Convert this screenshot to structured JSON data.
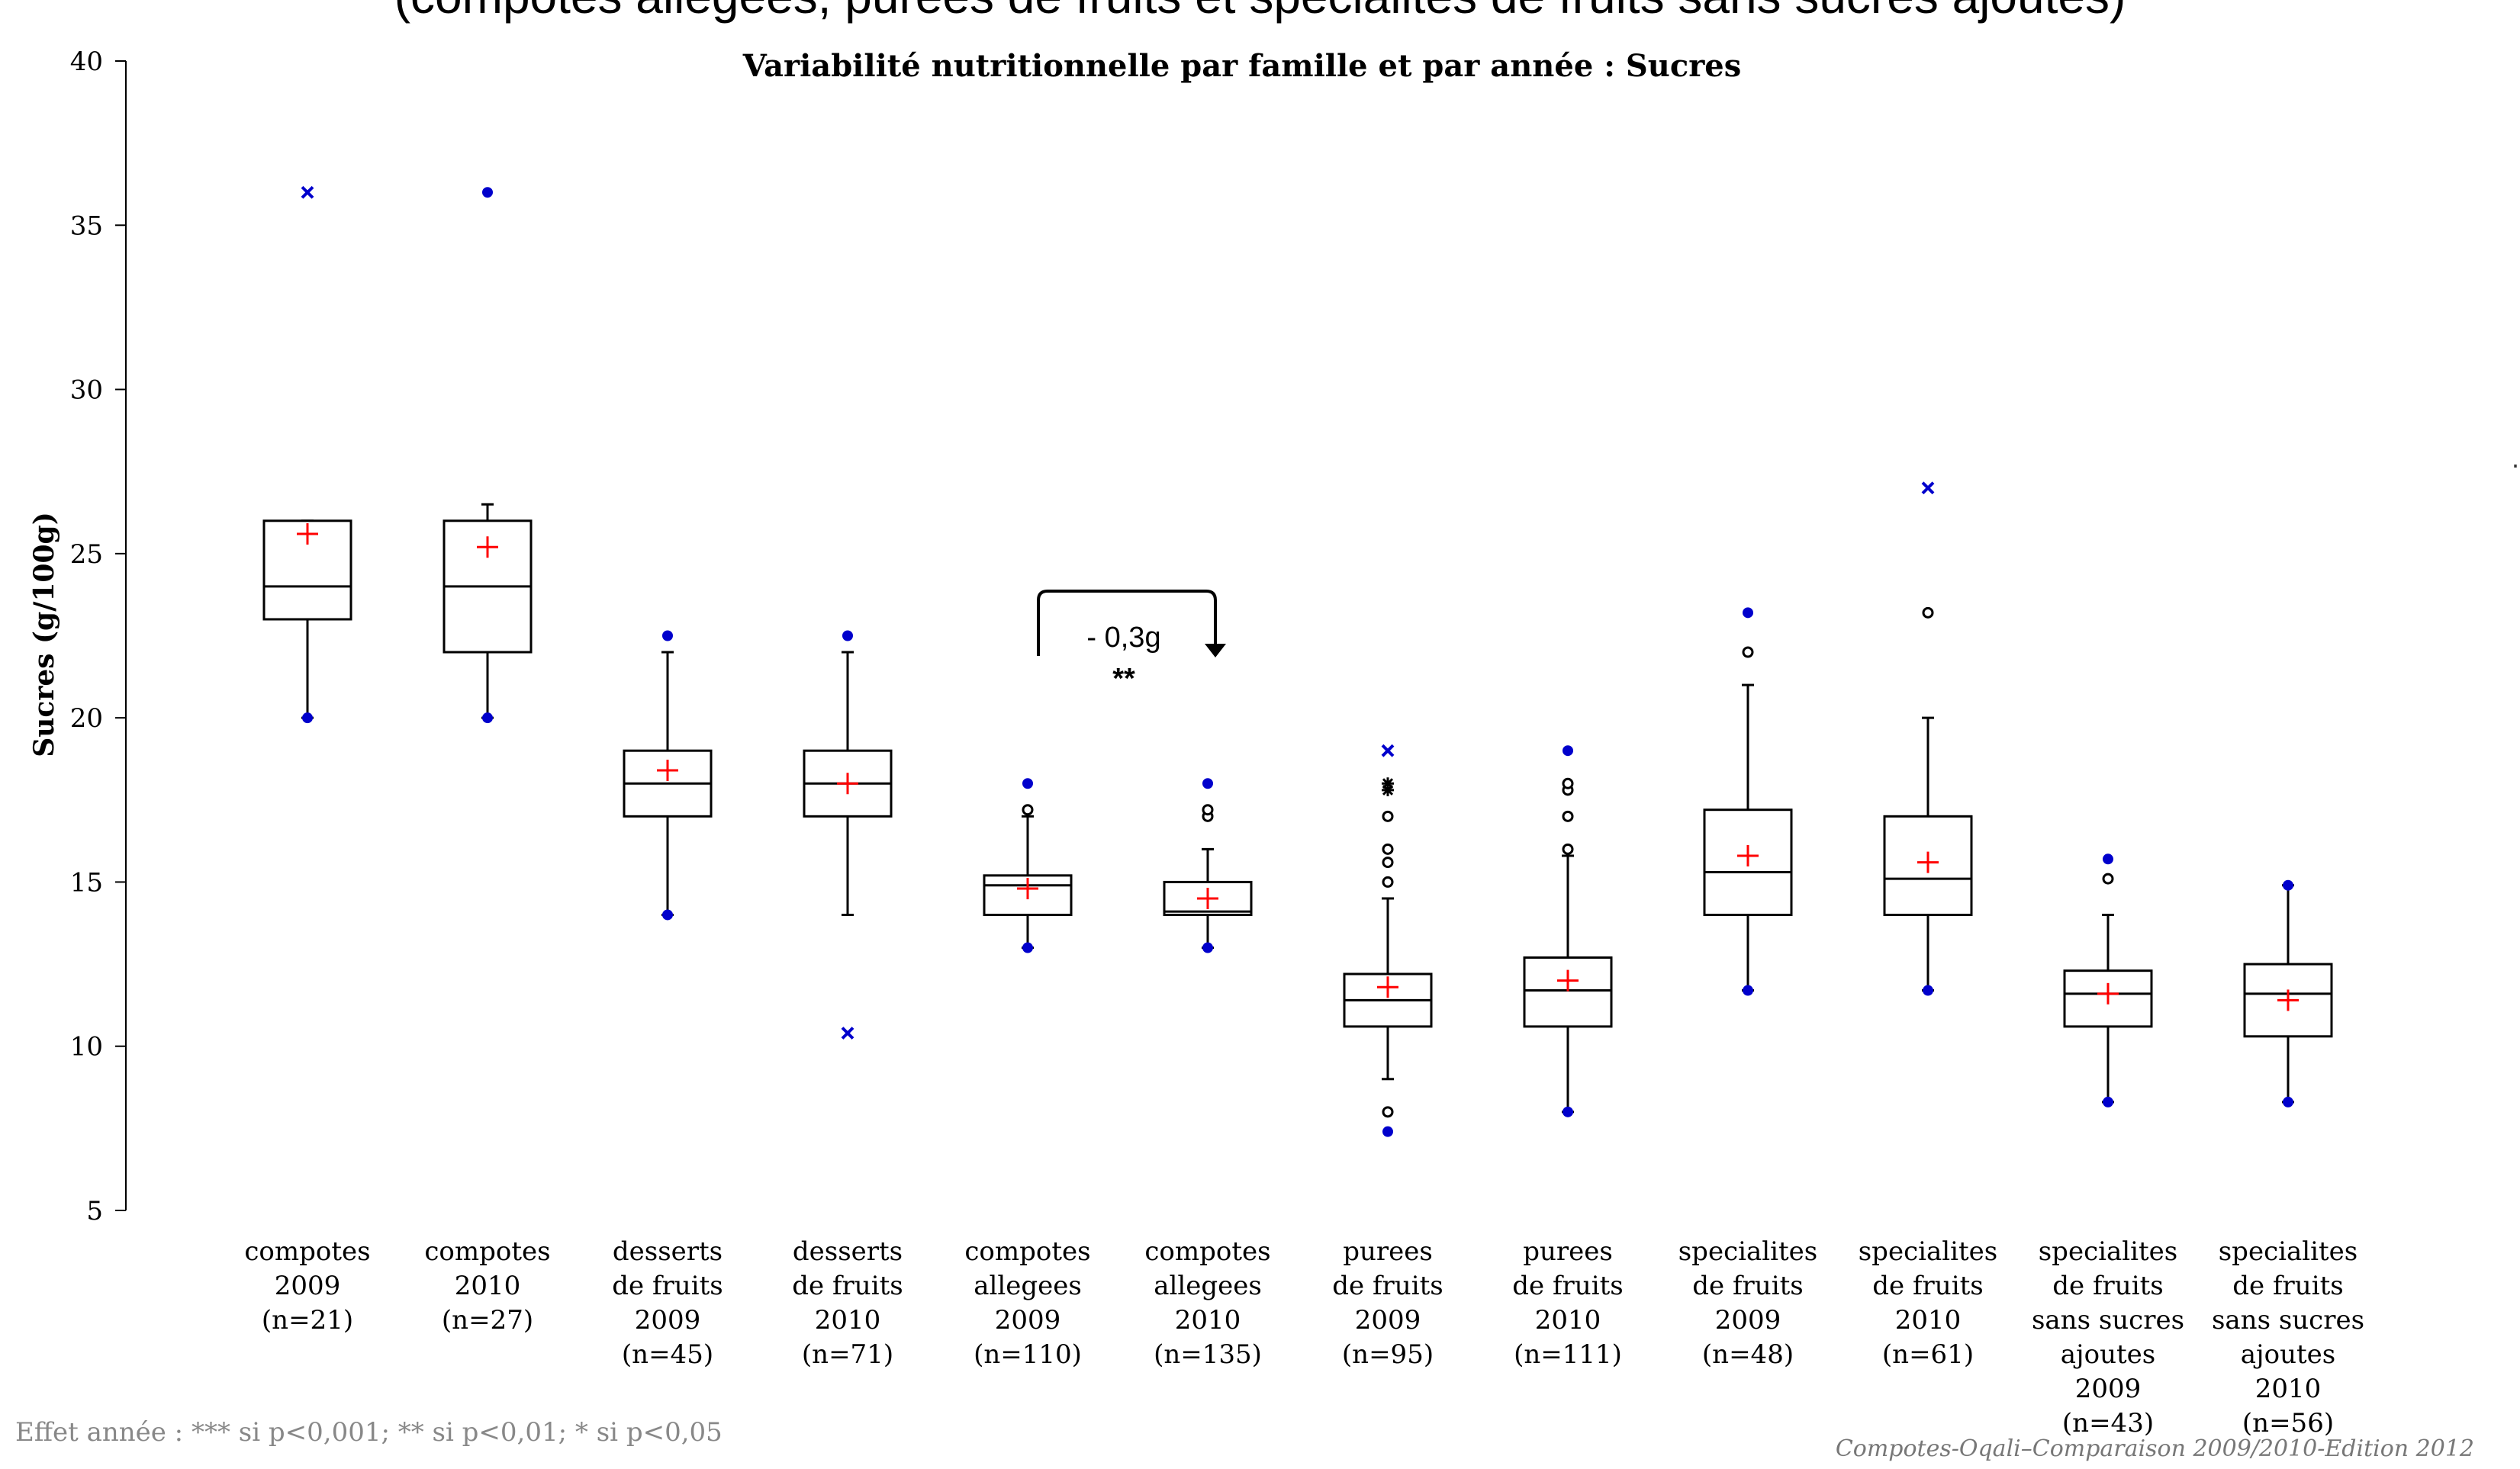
{
  "page_header": "(compotes allegees, purees de fruits et specialites de fruits sans sucres ajoutes)",
  "footnote": "Effet année : *** si p<0,001; ** si p<0,01; * si p<0,05",
  "source_note": "Compotes-Oqali–Comparaison 2009/2010-Edition  2012",
  "edge_mark": "·",
  "chart_data": {
    "type": "box",
    "title": "Variabilité nutritionnelle par famille et par année : Sucres",
    "ylabel": "Sucres (g/100g)",
    "ylim": [
      5,
      40
    ],
    "yticks": [
      5,
      10,
      15,
      20,
      25,
      30,
      35,
      40
    ],
    "grid": false,
    "colors": {
      "box": "#000000",
      "mean": "#ff0000",
      "extreme": "#0000cc",
      "outlier": "#000000"
    },
    "categories": [
      {
        "label_lines": [
          "compotes",
          "2009",
          "(n=21)"
        ],
        "whisker_low": 20,
        "q1": 23,
        "median": 24,
        "q3": 26,
        "whisker_high": 26,
        "mean": 25.6,
        "outliers": [],
        "extremes": [
          {
            "v": 36,
            "shape": "x"
          },
          {
            "v": 20,
            "shape": "dot"
          }
        ]
      },
      {
        "label_lines": [
          "compotes",
          "2010",
          "(n=27)"
        ],
        "whisker_low": 20,
        "q1": 22,
        "median": 24,
        "q3": 26,
        "whisker_high": 26.5,
        "mean": 25.2,
        "outliers": [],
        "extremes": [
          {
            "v": 36,
            "shape": "dot"
          },
          {
            "v": 20,
            "shape": "dot"
          }
        ]
      },
      {
        "label_lines": [
          "desserts",
          "de fruits",
          "2009",
          "(n=45)"
        ],
        "whisker_low": 14,
        "q1": 17,
        "median": 18,
        "q3": 19,
        "whisker_high": 22,
        "mean": 18.4,
        "outliers": [],
        "extremes": [
          {
            "v": 22.5,
            "shape": "dot"
          },
          {
            "v": 14,
            "shape": "dot"
          }
        ]
      },
      {
        "label_lines": [
          "desserts",
          "de fruits",
          "2010",
          "(n=71)"
        ],
        "whisker_low": 14,
        "q1": 17,
        "median": 18,
        "q3": 19,
        "whisker_high": 22,
        "mean": 18,
        "outliers": [],
        "extremes": [
          {
            "v": 22.5,
            "shape": "dot"
          },
          {
            "v": 10.4,
            "shape": "x"
          }
        ]
      },
      {
        "label_lines": [
          "compotes",
          "allegees",
          "2009",
          "(n=110)"
        ],
        "whisker_low": 13,
        "q1": 14,
        "median": 14.9,
        "q3": 15.2,
        "whisker_high": 17,
        "mean": 14.8,
        "outliers": [
          17.2
        ],
        "extremes": [
          {
            "v": 18,
            "shape": "dot"
          },
          {
            "v": 13,
            "shape": "dot"
          }
        ]
      },
      {
        "label_lines": [
          "compotes",
          "allegees",
          "2010",
          "(n=135)"
        ],
        "whisker_low": 13,
        "q1": 14,
        "median": 14.1,
        "q3": 15,
        "whisker_high": 16,
        "mean": 14.5,
        "outliers": [
          17,
          17.2
        ],
        "extremes": [
          {
            "v": 18,
            "shape": "dot"
          },
          {
            "v": 13,
            "shape": "dot"
          }
        ]
      },
      {
        "label_lines": [
          "purees",
          "de fruits",
          "2009",
          "(n=95)"
        ],
        "whisker_low": 9,
        "q1": 10.6,
        "median": 11.4,
        "q3": 12.2,
        "whisker_high": 14.5,
        "mean": 11.8,
        "outliers": [
          15,
          15.6,
          16,
          17,
          8
        ],
        "extremes": [
          {
            "v": 19,
            "shape": "x"
          },
          {
            "v": 18,
            "shape": "star"
          },
          {
            "v": 17.8,
            "shape": "star"
          },
          {
            "v": 7.4,
            "shape": "dot"
          }
        ]
      },
      {
        "label_lines": [
          "purees",
          "de fruits",
          "2010",
          "(n=111)"
        ],
        "whisker_low": 8,
        "q1": 10.6,
        "median": 11.7,
        "q3": 12.7,
        "whisker_high": 15.8,
        "mean": 12,
        "outliers": [
          16,
          17,
          17.8,
          18
        ],
        "extremes": [
          {
            "v": 19,
            "shape": "dot"
          },
          {
            "v": 8,
            "shape": "dot"
          }
        ]
      },
      {
        "label_lines": [
          "specialites",
          "de fruits",
          "2009",
          "(n=48)"
        ],
        "whisker_low": 11.7,
        "q1": 14,
        "median": 15.3,
        "q3": 17.2,
        "whisker_high": 21,
        "mean": 15.8,
        "outliers": [
          22
        ],
        "extremes": [
          {
            "v": 23.2,
            "shape": "dot"
          },
          {
            "v": 11.7,
            "shape": "dot"
          }
        ]
      },
      {
        "label_lines": [
          "specialites",
          "de fruits",
          "2010",
          "(n=61)"
        ],
        "whisker_low": 11.7,
        "q1": 14,
        "median": 15.1,
        "q3": 17,
        "whisker_high": 20,
        "mean": 15.6,
        "outliers": [
          23.2
        ],
        "extremes": [
          {
            "v": 27,
            "shape": "x"
          },
          {
            "v": 11.7,
            "shape": "dot"
          }
        ]
      },
      {
        "label_lines": [
          "specialites",
          "de fruits",
          "sans sucres",
          "ajoutes",
          "2009",
          "(n=43)"
        ],
        "whisker_low": 8.3,
        "q1": 10.6,
        "median": 11.6,
        "q3": 12.3,
        "whisker_high": 14,
        "mean": 11.6,
        "outliers": [
          15.1
        ],
        "extremes": [
          {
            "v": 15.7,
            "shape": "dot"
          },
          {
            "v": 8.3,
            "shape": "dot"
          }
        ]
      },
      {
        "label_lines": [
          "specialites",
          "de fruits",
          "sans sucres",
          "ajoutes",
          "2010",
          "(n=56)"
        ],
        "whisker_low": 8.3,
        "q1": 10.3,
        "median": 11.6,
        "q3": 12.5,
        "whisker_high": 14.9,
        "mean": 11.4,
        "outliers": [],
        "extremes": [
          {
            "v": 14.9,
            "shape": "dot"
          },
          {
            "v": 8.3,
            "shape": "dot"
          }
        ]
      }
    ],
    "annotations": [
      {
        "from_category": 4,
        "to_category": 5,
        "text": "- 0,3g",
        "significance": "**"
      }
    ]
  }
}
